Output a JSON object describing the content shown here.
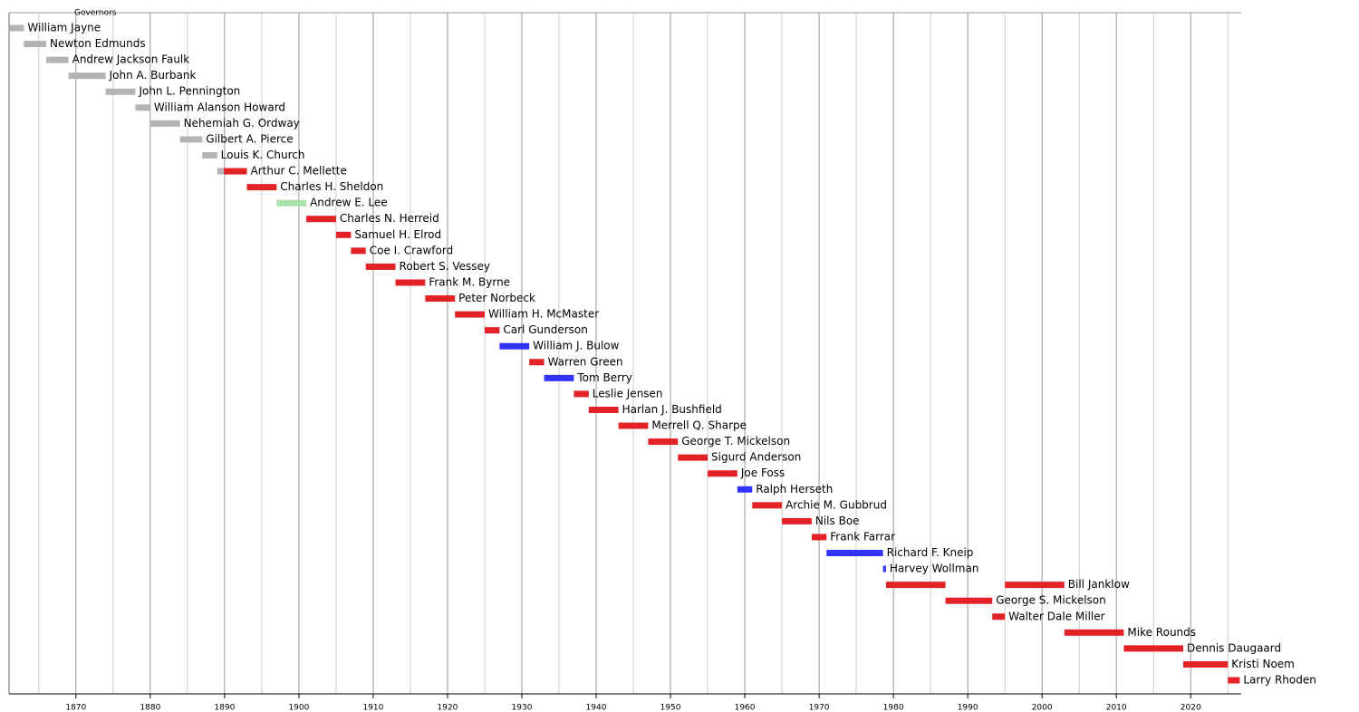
{
  "chart_data": {
    "type": "timeline",
    "title": "Governors",
    "xlim": [
      1861,
      2026.8
    ],
    "xticks": [
      1870,
      1880,
      1890,
      1900,
      1910,
      1920,
      1930,
      1940,
      1950,
      1960,
      1970,
      1980,
      1990,
      2000,
      2010,
      2020
    ],
    "minor_grid": [
      1865,
      1875,
      1885,
      1895,
      1905,
      1915,
      1925,
      1935,
      1945,
      1955,
      1965,
      1975,
      1985,
      1995,
      2005,
      2015,
      2025
    ],
    "grid": true,
    "rows": [
      {
        "label": "William Jayne",
        "bars": [
          {
            "start": 1861,
            "end": 1863,
            "color": "#b3b3b3"
          }
        ]
      },
      {
        "label": "Newton Edmunds",
        "bars": [
          {
            "start": 1863,
            "end": 1866,
            "color": "#b3b3b3"
          }
        ]
      },
      {
        "label": "Andrew Jackson Faulk",
        "bars": [
          {
            "start": 1866,
            "end": 1869,
            "color": "#b3b3b3"
          }
        ]
      },
      {
        "label": "John A. Burbank",
        "bars": [
          {
            "start": 1869,
            "end": 1874,
            "color": "#b3b3b3"
          }
        ]
      },
      {
        "label": "John L. Pennington",
        "bars": [
          {
            "start": 1874,
            "end": 1878,
            "color": "#b3b3b3"
          }
        ]
      },
      {
        "label": "William Alanson Howard",
        "bars": [
          {
            "start": 1878,
            "end": 1880,
            "color": "#b3b3b3"
          }
        ]
      },
      {
        "label": "Nehemiah G. Ordway",
        "bars": [
          {
            "start": 1880,
            "end": 1884,
            "color": "#b3b3b3"
          }
        ]
      },
      {
        "label": "Gilbert A. Pierce",
        "bars": [
          {
            "start": 1884,
            "end": 1887,
            "color": "#b3b3b3"
          }
        ]
      },
      {
        "label": "Louis K. Church",
        "bars": [
          {
            "start": 1887,
            "end": 1889,
            "color": "#b3b3b3"
          }
        ]
      },
      {
        "label": "Arthur C. Mellette",
        "bars": [
          {
            "start": 1889,
            "end": 1889.9,
            "color": "#b3b3b3"
          },
          {
            "start": 1889.9,
            "end": 1893,
            "color": "#e32227"
          }
        ]
      },
      {
        "label": "Charles H. Sheldon",
        "bars": [
          {
            "start": 1893,
            "end": 1897,
            "color": "#e32227"
          }
        ]
      },
      {
        "label": "Andrew E. Lee",
        "bars": [
          {
            "start": 1897,
            "end": 1901,
            "color": "#aae0aa"
          }
        ]
      },
      {
        "label": "Charles N. Herreid",
        "bars": [
          {
            "start": 1901,
            "end": 1905,
            "color": "#e32227"
          }
        ]
      },
      {
        "label": "Samuel H. Elrod",
        "bars": [
          {
            "start": 1905,
            "end": 1907,
            "color": "#e32227"
          }
        ]
      },
      {
        "label": "Coe I. Crawford",
        "bars": [
          {
            "start": 1907,
            "end": 1909,
            "color": "#e32227"
          }
        ]
      },
      {
        "label": "Robert S. Vessey",
        "bars": [
          {
            "start": 1909,
            "end": 1913,
            "color": "#e32227"
          }
        ]
      },
      {
        "label": "Frank M. Byrne",
        "bars": [
          {
            "start": 1913,
            "end": 1917,
            "color": "#e32227"
          }
        ]
      },
      {
        "label": "Peter Norbeck",
        "bars": [
          {
            "start": 1917,
            "end": 1921,
            "color": "#e32227"
          }
        ]
      },
      {
        "label": "William H. McMaster",
        "bars": [
          {
            "start": 1921,
            "end": 1925,
            "color": "#e32227"
          }
        ]
      },
      {
        "label": "Carl Gunderson",
        "bars": [
          {
            "start": 1925,
            "end": 1927,
            "color": "#e32227"
          }
        ]
      },
      {
        "label": "William J. Bulow",
        "bars": [
          {
            "start": 1927,
            "end": 1931,
            "color": "#3333ff"
          }
        ]
      },
      {
        "label": "Warren Green",
        "bars": [
          {
            "start": 1931,
            "end": 1933,
            "color": "#e32227"
          }
        ]
      },
      {
        "label": "Tom Berry",
        "bars": [
          {
            "start": 1933,
            "end": 1937,
            "color": "#3333ff"
          }
        ]
      },
      {
        "label": "Leslie Jensen",
        "bars": [
          {
            "start": 1937,
            "end": 1939,
            "color": "#e32227"
          }
        ]
      },
      {
        "label": "Harlan J. Bushfield",
        "bars": [
          {
            "start": 1939,
            "end": 1943,
            "color": "#e32227"
          }
        ]
      },
      {
        "label": "Merrell Q. Sharpe",
        "bars": [
          {
            "start": 1943,
            "end": 1947,
            "color": "#e32227"
          }
        ]
      },
      {
        "label": "George T. Mickelson",
        "bars": [
          {
            "start": 1947,
            "end": 1951,
            "color": "#e32227"
          }
        ]
      },
      {
        "label": "Sigurd Anderson",
        "bars": [
          {
            "start": 1951,
            "end": 1955,
            "color": "#e32227"
          }
        ]
      },
      {
        "label": "Joe Foss",
        "bars": [
          {
            "start": 1955,
            "end": 1959,
            "color": "#e32227"
          }
        ]
      },
      {
        "label": "Ralph Herseth",
        "bars": [
          {
            "start": 1959,
            "end": 1961,
            "color": "#3333ff"
          }
        ]
      },
      {
        "label": "Archie M. Gubbrud",
        "bars": [
          {
            "start": 1961,
            "end": 1965,
            "color": "#e32227"
          }
        ]
      },
      {
        "label": "Nils Boe",
        "bars": [
          {
            "start": 1965,
            "end": 1969,
            "color": "#e32227"
          }
        ]
      },
      {
        "label": "Frank Farrar",
        "bars": [
          {
            "start": 1969,
            "end": 1971,
            "color": "#e32227"
          }
        ]
      },
      {
        "label": "Richard F. Kneip",
        "bars": [
          {
            "start": 1971,
            "end": 1978.6,
            "color": "#3333ff"
          }
        ]
      },
      {
        "label": "Harvey Wollman",
        "bars": [
          {
            "start": 1978.6,
            "end": 1979,
            "color": "#3333ff"
          }
        ]
      },
      {
        "label": "Bill Janklow",
        "bars": [
          {
            "start": 1979,
            "end": 1987,
            "color": "#e32227"
          },
          {
            "start": 1995,
            "end": 2003,
            "color": "#e32227"
          }
        ]
      },
      {
        "label": "George S. Mickelson",
        "bars": [
          {
            "start": 1987,
            "end": 1993.3,
            "color": "#e32227"
          }
        ]
      },
      {
        "label": "Walter Dale Miller",
        "bars": [
          {
            "start": 1993.3,
            "end": 1995,
            "color": "#e32227"
          }
        ]
      },
      {
        "label": "Mike Rounds",
        "bars": [
          {
            "start": 2003,
            "end": 2011,
            "color": "#e32227"
          }
        ]
      },
      {
        "label": "Dennis Daugaard",
        "bars": [
          {
            "start": 2011,
            "end": 2019,
            "color": "#e32227"
          }
        ]
      },
      {
        "label": "Kristi Noem",
        "bars": [
          {
            "start": 2019,
            "end": 2025,
            "color": "#e32227"
          }
        ]
      },
      {
        "label": "Larry Rhoden",
        "bars": [
          {
            "start": 2025,
            "end": 2026.6,
            "color": "#e32227"
          }
        ]
      }
    ]
  }
}
